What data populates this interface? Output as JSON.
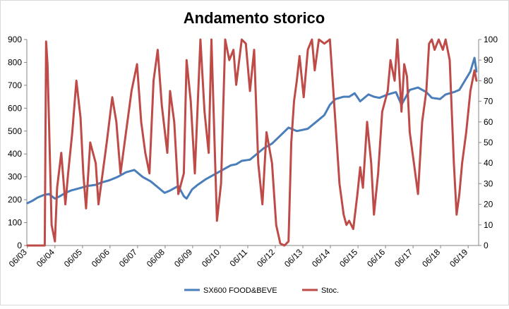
{
  "chart_data": {
    "type": "line",
    "title": "Andamento storico",
    "xlabel": "",
    "ylabel": "",
    "x_tick_labels": [
      "06/03",
      "06/04",
      "06/05",
      "06/06",
      "06/07",
      "06/08",
      "06/09",
      "06/10",
      "06/11",
      "06/12",
      "06/13",
      "06/14",
      "06/15",
      "06/16",
      "06/17",
      "06/18",
      "06/19"
    ],
    "x_range": [
      2003.4,
      2019.8
    ],
    "y_left": {
      "range": [
        0,
        900
      ],
      "ticks": [
        0,
        100,
        200,
        300,
        400,
        500,
        600,
        700,
        800,
        900
      ]
    },
    "y_right": {
      "range": [
        0,
        100
      ],
      "ticks": [
        0,
        10,
        20,
        30,
        40,
        50,
        60,
        70,
        80,
        90,
        100
      ]
    },
    "grid": false,
    "legend_position": "bottom",
    "series": [
      {
        "name": "SX600 FOOD&BEVE",
        "axis": "left",
        "color": "#4a7ebb",
        "x": [
          2003.42,
          2003.6,
          2003.8,
          2004.0,
          2004.2,
          2004.42,
          2004.6,
          2004.8,
          2005.0,
          2005.3,
          2005.6,
          2005.9,
          2006.1,
          2006.4,
          2006.7,
          2007.0,
          2007.3,
          2007.6,
          2007.9,
          2008.2,
          2008.4,
          2008.6,
          2008.9,
          2009.1,
          2009.2,
          2009.4,
          2009.6,
          2009.9,
          2010.2,
          2010.5,
          2010.8,
          2011.0,
          2011.2,
          2011.5,
          2011.8,
          2012.0,
          2012.3,
          2012.6,
          2012.9,
          2013.2,
          2013.4,
          2013.6,
          2013.9,
          2014.2,
          2014.4,
          2014.6,
          2014.9,
          2015.1,
          2015.3,
          2015.5,
          2015.8,
          2016.0,
          2016.2,
          2016.5,
          2016.8,
          2017.0,
          2017.3,
          2017.6,
          2017.9,
          2018.1,
          2018.4,
          2018.6,
          2018.9,
          2019.1,
          2019.3,
          2019.5,
          2019.65,
          2019.72
        ],
        "y": [
          185,
          195,
          210,
          220,
          225,
          205,
          215,
          230,
          240,
          250,
          260,
          265,
          275,
          285,
          300,
          320,
          330,
          300,
          280,
          250,
          230,
          240,
          260,
          215,
          205,
          245,
          265,
          290,
          310,
          330,
          350,
          355,
          370,
          375,
          405,
          425,
          445,
          480,
          515,
          500,
          505,
          510,
          540,
          570,
          615,
          640,
          650,
          650,
          665,
          630,
          660,
          650,
          645,
          660,
          670,
          615,
          680,
          690,
          670,
          645,
          640,
          660,
          670,
          680,
          720,
          760,
          820,
          760
        ]
      },
      {
        "name": "Stoc.",
        "axis": "right",
        "color": "#be4b48",
        "x": [
          2003.42,
          2004.05,
          2004.1,
          2004.15,
          2004.3,
          2004.42,
          2004.5,
          2004.65,
          2004.8,
          2004.9,
          2005.05,
          2005.2,
          2005.35,
          2005.45,
          2005.55,
          2005.7,
          2005.9,
          2006.0,
          2006.1,
          2006.3,
          2006.5,
          2006.65,
          2006.8,
          2007.0,
          2007.2,
          2007.4,
          2007.55,
          2007.7,
          2007.85,
          2008.0,
          2008.15,
          2008.3,
          2008.5,
          2008.6,
          2008.75,
          2008.9,
          2009.1,
          2009.2,
          2009.35,
          2009.5,
          2009.7,
          2009.85,
          2010.0,
          2010.1,
          2010.3,
          2010.45,
          2010.6,
          2010.75,
          2010.9,
          2011.0,
          2011.2,
          2011.35,
          2011.5,
          2011.65,
          2011.8,
          2011.95,
          2012.1,
          2012.3,
          2012.45,
          2012.6,
          2012.75,
          2012.9,
          2013.0,
          2013.1,
          2013.2,
          2013.3,
          2013.45,
          2013.6,
          2013.75,
          2013.85,
          2014.0,
          2014.2,
          2014.4,
          2014.6,
          2014.75,
          2014.9,
          2015.0,
          2015.1,
          2015.25,
          2015.4,
          2015.5,
          2015.6,
          2015.75,
          2015.9,
          2016.0,
          2016.15,
          2016.3,
          2016.5,
          2016.6,
          2016.75,
          2016.85,
          2017.0,
          2017.1,
          2017.2,
          2017.3,
          2017.45,
          2017.6,
          2017.75,
          2017.9,
          2018.0,
          2018.1,
          2018.2,
          2018.35,
          2018.5,
          2018.6,
          2018.75,
          2018.9,
          2019.0,
          2019.1,
          2019.2,
          2019.35,
          2019.5,
          2019.65,
          2019.72
        ],
        "y": [
          0,
          0,
          99,
          88,
          10,
          2,
          28,
          45,
          20,
          35,
          55,
          80,
          62,
          35,
          18,
          50,
          40,
          20,
          30,
          50,
          72,
          60,
          35,
          55,
          75,
          88,
          60,
          45,
          35,
          80,
          95,
          68,
          45,
          75,
          60,
          25,
          35,
          90,
          70,
          35,
          100,
          65,
          45,
          100,
          12,
          30,
          100,
          90,
          95,
          78,
          100,
          98,
          75,
          95,
          40,
          20,
          55,
          40,
          10,
          1,
          0,
          2,
          50,
          70,
          80,
          92,
          72,
          95,
          100,
          85,
          100,
          98,
          100,
          60,
          30,
          15,
          10,
          12,
          8,
          25,
          38,
          28,
          60,
          40,
          15,
          35,
          65,
          75,
          90,
          80,
          100,
          65,
          88,
          82,
          55,
          40,
          25,
          60,
          75,
          98,
          100,
          95,
          100,
          95,
          100,
          90,
          40,
          15,
          25,
          40,
          55,
          75,
          85,
          80
        ]
      }
    ]
  }
}
